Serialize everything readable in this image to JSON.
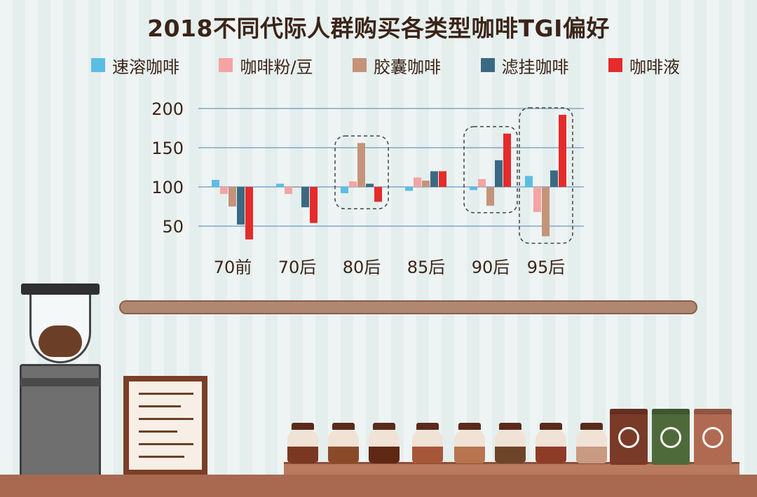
{
  "title": "2018不同代际人群购买各类型咖啡TGI偏好",
  "chart_data": {
    "type": "bar",
    "baseline": 100,
    "ylim": [
      30,
      205
    ],
    "yticks": [
      50,
      100,
      150,
      200
    ],
    "grid": true,
    "legend_placement": "top",
    "categories": [
      "70前",
      "70后",
      "80后",
      "85后",
      "90后",
      "95后"
    ],
    "series": [
      {
        "name": "速溶咖啡",
        "color": "#5bbde3",
        "values": [
          109,
          104,
          92,
          95,
          96,
          114
        ]
      },
      {
        "name": "咖啡粉/豆",
        "color": "#f5a3a3",
        "values": [
          91,
          91,
          107,
          112,
          110,
          68
        ]
      },
      {
        "name": "胶囊咖啡",
        "color": "#c4937a",
        "values": [
          75,
          100,
          156,
          108,
          76,
          37
        ]
      },
      {
        "name": "滤挂咖啡",
        "color": "#3a6a83",
        "values": [
          52,
          74,
          104,
          120,
          134,
          121
        ]
      },
      {
        "name": "咖啡液",
        "color": "#e52b2b",
        "values": [
          33,
          54,
          81,
          120,
          168,
          192
        ]
      }
    ]
  },
  "scene": {
    "jar_colors": [
      "#7a3820",
      "#8a4a2a",
      "#5e2814",
      "#a8563a",
      "#b8744f",
      "#6e4428",
      "#8e3c28",
      "#c89a82"
    ],
    "bag_colors": [
      "#7a3a28",
      "#4f6a3a",
      "#b06a52"
    ]
  }
}
